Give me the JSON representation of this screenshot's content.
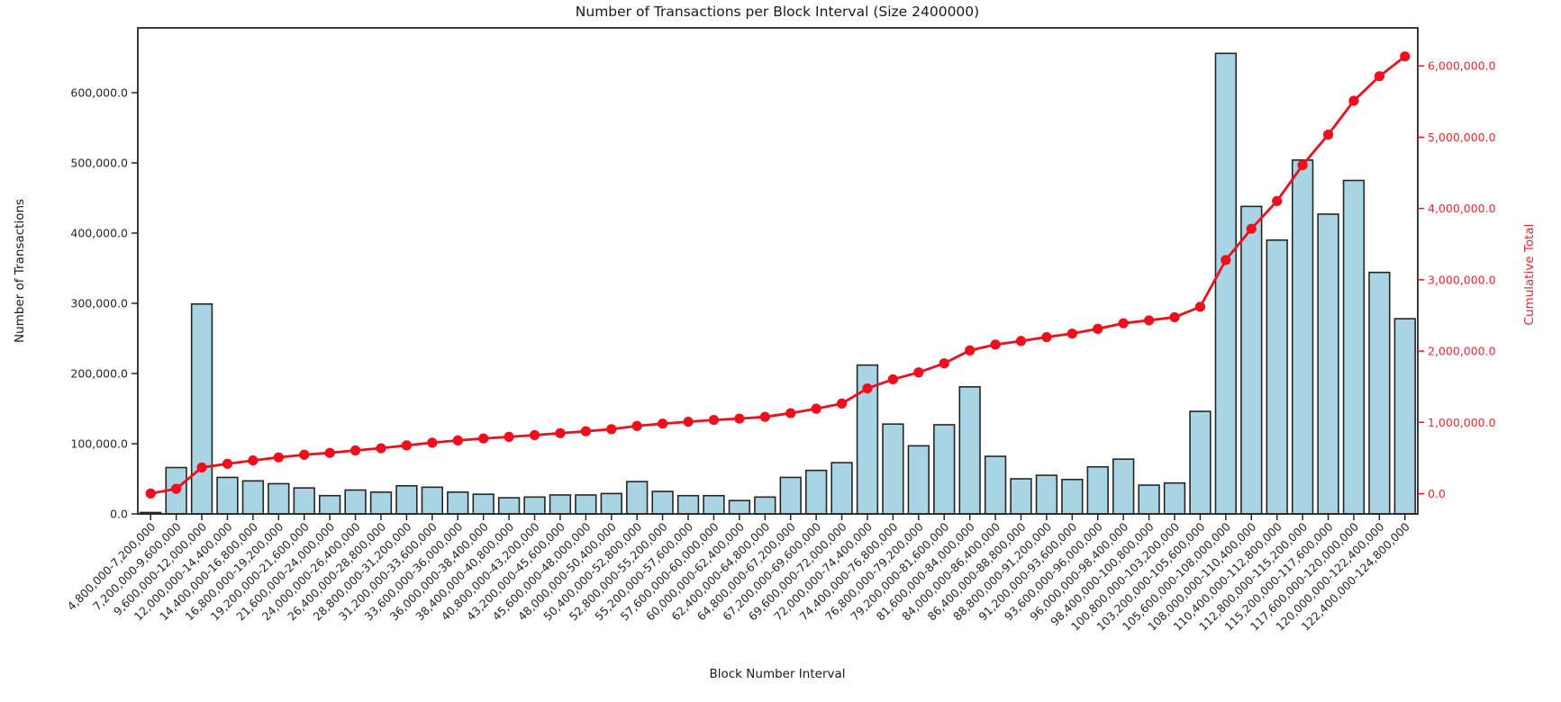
{
  "chart_data": {
    "type": "bar",
    "combo": "bar+line",
    "title": "Number of Transactions per Block Interval (Size 2400000)",
    "xlabel": "Block Number Interval",
    "ylabel_left": "Number of Transactions",
    "ylabel_right": "Cumulative Total",
    "grid": false,
    "legend": "none",
    "categories": [
      "4,800,000-7,200,000",
      "7,200,000-9,600,000",
      "9,600,000-12,000,000",
      "12,000,000-14,400,000",
      "14,400,000-16,800,000",
      "16,800,000-19,200,000",
      "19,200,000-21,600,000",
      "21,600,000-24,000,000",
      "24,000,000-26,400,000",
      "26,400,000-28,800,000",
      "28,800,000-31,200,000",
      "31,200,000-33,600,000",
      "33,600,000-36,000,000",
      "36,000,000-38,400,000",
      "38,400,000-40,800,000",
      "40,800,000-43,200,000",
      "43,200,000-45,600,000",
      "45,600,000-48,000,000",
      "48,000,000-50,400,000",
      "50,400,000-52,800,000",
      "52,800,000-55,200,000",
      "55,200,000-57,600,000",
      "57,600,000-60,000,000",
      "60,000,000-62,400,000",
      "62,400,000-64,800,000",
      "64,800,000-67,200,000",
      "67,200,000-69,600,000",
      "69,600,000-72,000,000",
      "72,000,000-74,400,000",
      "74,400,000-76,800,000",
      "76,800,000-79,200,000",
      "79,200,000-81,600,000",
      "81,600,000-84,000,000",
      "84,000,000-86,400,000",
      "86,400,000-88,800,000",
      "88,800,000-91,200,000",
      "91,200,000-93,600,000",
      "93,600,000-96,000,000",
      "96,000,000-98,400,000",
      "98,400,000-100,800,000",
      "100,800,000-103,200,000",
      "103,200,000-105,600,000",
      "105,600,000-108,000,000",
      "108,000,000-110,400,000",
      "110,400,000-112,800,000",
      "112,800,000-115,200,000",
      "115,200,000-117,600,000",
      "117,600,000-120,000,000",
      "120,000,000-122,400,000",
      "122,400,000-124,800,000"
    ],
    "series": [
      {
        "name": "Number of Transactions",
        "kind": "bar",
        "axis": "left",
        "values": [
          2000,
          66000,
          299000,
          52000,
          47000,
          43000,
          37000,
          26000,
          34000,
          31000,
          40000,
          38000,
          31000,
          28000,
          23000,
          24000,
          27000,
          27000,
          29000,
          46000,
          32000,
          26000,
          26000,
          19000,
          24000,
          52000,
          62000,
          73000,
          212000,
          128000,
          97000,
          127000,
          181000,
          82000,
          50000,
          55000,
          49000,
          67000,
          78000,
          41000,
          44000,
          146000,
          656000,
          438000,
          390000,
          504000,
          427000,
          475000,
          344000,
          278000
        ]
      },
      {
        "name": "Cumulative Total",
        "kind": "line",
        "axis": "right",
        "values": [
          2000,
          68000,
          367000,
          419000,
          466000,
          509000,
          546000,
          572000,
          606000,
          637000,
          677000,
          715000,
          746000,
          774000,
          797000,
          821000,
          848000,
          875000,
          904000,
          950000,
          982000,
          1008000,
          1034000,
          1053000,
          1077000,
          1129000,
          1191000,
          1264000,
          1476000,
          1604000,
          1701000,
          1828000,
          2009000,
          2091000,
          2141000,
          2196000,
          2245000,
          2312000,
          2390000,
          2431000,
          2475000,
          2621000,
          3277000,
          3715000,
          4105000,
          4609000,
          5036000,
          5511000,
          5855000,
          6133000
        ]
      }
    ],
    "y_left_ticks": {
      "values": [
        0,
        100000,
        200000,
        300000,
        400000,
        500000,
        600000
      ],
      "labels": [
        "0.0",
        "100,000.0",
        "200,000.0",
        "300,000.0",
        "400,000.0",
        "500,000.0",
        "600,000.0"
      ]
    },
    "y_right_ticks": {
      "values": [
        0,
        1000000,
        2000000,
        3000000,
        4000000,
        5000000,
        6000000
      ],
      "labels": [
        "0.0",
        "1,000,000.0",
        "2,000,000.0",
        "3,000,000.0",
        "4,000,000.0",
        "5,000,000.0",
        "6,000,000.0"
      ]
    },
    "ylim_left": [
      0,
      692300
    ],
    "ylim_right": [
      -284000,
      6533000
    ],
    "colors": {
      "bar_fill": "#a9d4e4",
      "bar_edge": "#262626",
      "line": "#f10e1c",
      "right_axis_text": "#f42632",
      "axis_text": "#262626",
      "spine": "#262626",
      "background": "#ffffff"
    }
  }
}
